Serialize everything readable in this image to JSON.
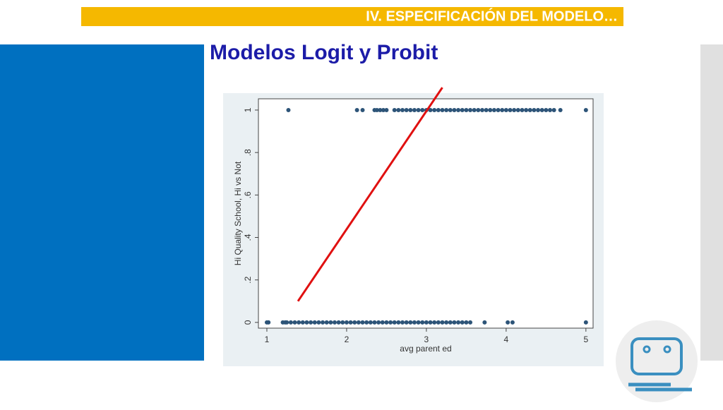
{
  "header": "IV. ESPECIFICACIÓN DEL MODELO…",
  "title": "Modelos Logit y Probit",
  "chart_data": {
    "type": "scatter",
    "x_label": "avg parent ed",
    "y_label": "Hi Quality School, Hi vs Not",
    "xlim": [
      0.894,
      5.09
    ],
    "ylim": [
      -0.027,
      1.053
    ],
    "xticks": [
      1,
      2,
      3,
      4,
      5
    ],
    "yticks": [
      0,
      {
        "value": 0.2,
        "label": ".2"
      },
      {
        "value": 0.4,
        "label": ".4"
      },
      {
        "value": 0.6,
        "label": ".6"
      },
      {
        "value": 0.8,
        "label": ".8"
      },
      1
    ],
    "series": [
      {
        "color": "#2d5478",
        "x": [
          1,
          1.02,
          1.2,
          1.23,
          1.25,
          1.3,
          1.35,
          1.4,
          1.45,
          1.5,
          1.55,
          1.6,
          1.65,
          1.7,
          1.75,
          1.8,
          1.85,
          1.9,
          1.95,
          2,
          2.05,
          2.1,
          2.15,
          2.2,
          2.25,
          2.3,
          2.35,
          2.4,
          2.45,
          2.5,
          2.55,
          2.6,
          2.65,
          2.7,
          2.75,
          2.8,
          2.85,
          2.9,
          2.95,
          3,
          3.05,
          3.1,
          3.15,
          3.2,
          3.25,
          3.3,
          3.35,
          3.4,
          3.45,
          3.5,
          3.55,
          3.73,
          4.02,
          4.08,
          5
        ],
        "values": [
          0,
          0,
          0,
          0,
          0,
          0,
          0,
          0,
          0,
          0,
          0,
          0,
          0,
          0,
          0,
          0,
          0,
          0,
          0,
          0,
          0,
          0,
          0,
          0,
          0,
          0,
          0,
          0,
          0,
          0,
          0,
          0,
          0,
          0,
          0,
          0,
          0,
          0,
          0,
          0,
          0,
          0,
          0,
          0,
          0,
          0,
          0,
          0,
          0,
          0,
          0,
          0,
          0,
          0,
          0
        ]
      },
      {
        "color": "#2d5478",
        "x": [
          1.27,
          2.13,
          2.2,
          2.35,
          2.38,
          2.42,
          2.46,
          2.5,
          2.6,
          2.65,
          2.7,
          2.75,
          2.8,
          2.85,
          2.9,
          2.95,
          3,
          3.05,
          3.1,
          3.15,
          3.2,
          3.25,
          3.3,
          3.35,
          3.4,
          3.45,
          3.5,
          3.55,
          3.6,
          3.65,
          3.7,
          3.75,
          3.8,
          3.85,
          3.9,
          3.95,
          4,
          4.05,
          4.1,
          4.15,
          4.2,
          4.25,
          4.3,
          4.35,
          4.4,
          4.45,
          4.5,
          4.55,
          4.6,
          4.68,
          5
        ],
        "values": [
          1,
          1,
          1,
          1,
          1,
          1,
          1,
          1,
          1,
          1,
          1,
          1,
          1,
          1,
          1,
          1,
          1,
          1,
          1,
          1,
          1,
          1,
          1,
          1,
          1,
          1,
          1,
          1,
          1,
          1,
          1,
          1,
          1,
          1,
          1,
          1,
          1,
          1,
          1,
          1,
          1,
          1,
          1,
          1,
          1,
          1,
          1,
          1,
          1,
          1,
          1
        ]
      }
    ],
    "lines": [
      {
        "color": "#e01010",
        "x": [
          1.39,
          3.2
        ],
        "values": [
          0.1,
          1.106
        ]
      }
    ]
  }
}
